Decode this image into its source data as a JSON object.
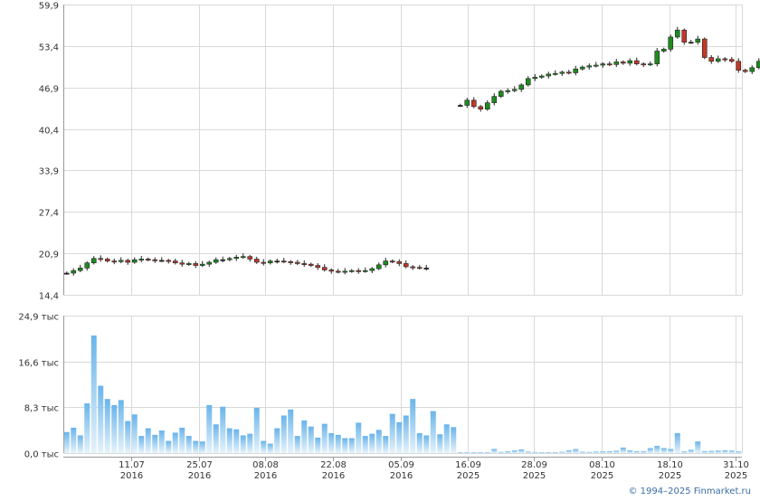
{
  "copyright": "© 1994–2025 Finmarket.ru",
  "colors": {
    "up": "#1e8c1e",
    "down": "#c0392b",
    "volume_top": "#6ab4ea",
    "volume_bottom": "#e6f3fc"
  },
  "chart_data": [
    {
      "type": "candlestick",
      "title": "",
      "y_ticks": [
        "59,9",
        "53,4",
        "46,9",
        "40,4",
        "33,9",
        "27,4",
        "20,9",
        "14,4"
      ],
      "ylim": [
        14.4,
        59.9
      ],
      "grid": true,
      "segments": [
        {
          "start_index": 0,
          "closes": [
            17.8,
            18.2,
            18.6,
            19.4,
            20.1,
            20.0,
            19.7,
            19.6,
            19.8,
            19.5,
            19.9,
            20.0,
            19.9,
            19.8,
            19.8,
            19.7,
            19.4,
            19.2,
            19.3,
            19.0,
            19.2,
            19.5,
            19.9,
            19.9,
            20.1,
            20.3,
            20.4,
            20.0,
            19.5,
            19.4,
            19.7,
            19.7,
            19.6,
            19.5,
            19.3,
            19.2,
            19.0,
            18.7,
            18.3,
            18.1,
            18.0,
            18.1,
            18.2,
            18.1,
            18.2,
            18.5,
            19.1,
            19.7,
            19.6,
            19.3,
            18.8,
            18.7,
            18.6,
            18.6
          ]
        },
        {
          "start_index": 58,
          "closes": [
            44.1,
            44.9,
            43.9,
            43.5,
            44.5,
            45.5,
            46.3,
            46.4,
            46.6,
            47.3,
            48.3,
            48.5,
            48.7,
            49.0,
            49.1,
            49.3,
            49.2,
            49.8,
            50.1,
            50.3,
            50.4,
            50.6,
            50.5,
            50.9,
            50.7,
            51.1,
            50.6,
            50.5,
            50.6,
            52.6,
            52.9,
            54.8,
            55.9,
            54.0,
            54.0,
            54.5,
            51.6,
            51.0,
            51.4,
            51.3,
            51.0,
            49.6,
            49.4,
            50.0,
            51.0,
            51.0
          ]
        }
      ]
    },
    {
      "type": "bar",
      "series_label": "volume",
      "y_ticks": [
        "24,9 тыс",
        "16,6 тыс",
        "8,3 тыс",
        "0,0 тыс"
      ],
      "ylim": [
        0,
        24.9
      ],
      "grid": true,
      "x_ticks": [
        {
          "day": "11.07",
          "year": "2016"
        },
        {
          "day": "25.07",
          "year": "2016"
        },
        {
          "day": "08.08",
          "year": "2016"
        },
        {
          "day": "22.08",
          "year": "2016"
        },
        {
          "day": "05.09",
          "year": "2016"
        },
        {
          "day": "16.09",
          "year": "2025"
        },
        {
          "day": "28.09",
          "year": "2025"
        },
        {
          "day": "08.10",
          "year": "2025"
        },
        {
          "day": "18.10",
          "year": "2025"
        },
        {
          "day": "31.10",
          "year": "2025"
        }
      ],
      "values": [
        3.8,
        4.6,
        3.2,
        9.0,
        21.3,
        12.2,
        9.8,
        8.7,
        9.6,
        5.8,
        7.0,
        3.1,
        4.5,
        3.3,
        4.1,
        2.2,
        3.7,
        4.6,
        3.1,
        2.2,
        2.1,
        8.7,
        5.2,
        8.4,
        4.5,
        4.3,
        3.2,
        3.5,
        8.2,
        2.2,
        1.7,
        4.5,
        6.8,
        7.9,
        3.1,
        5.9,
        4.8,
        2.8,
        5.3,
        3.6,
        3.3,
        2.7,
        2.7,
        5.5,
        3.1,
        3.5,
        4.2,
        3.1,
        7.1,
        5.6,
        6.8,
        9.8,
        3.6,
        3.2,
        7.6,
        3.4,
        5.2,
        4.7,
        0.08,
        0.12,
        0.1,
        0.16,
        0.13,
        0.75,
        0.2,
        0.32,
        0.48,
        0.66,
        0.27,
        0.18,
        0.11,
        0.15,
        0.16,
        0.22,
        0.5,
        0.73,
        0.25,
        0.2,
        0.28,
        0.32,
        0.35,
        0.42,
        1.0,
        0.5,
        0.32,
        0.35,
        0.9,
        1.3,
        0.9,
        0.75,
        3.6,
        0.3,
        0.6,
        2.1,
        0.35,
        0.4,
        0.45,
        0.5,
        0.45,
        0.3
      ]
    }
  ]
}
